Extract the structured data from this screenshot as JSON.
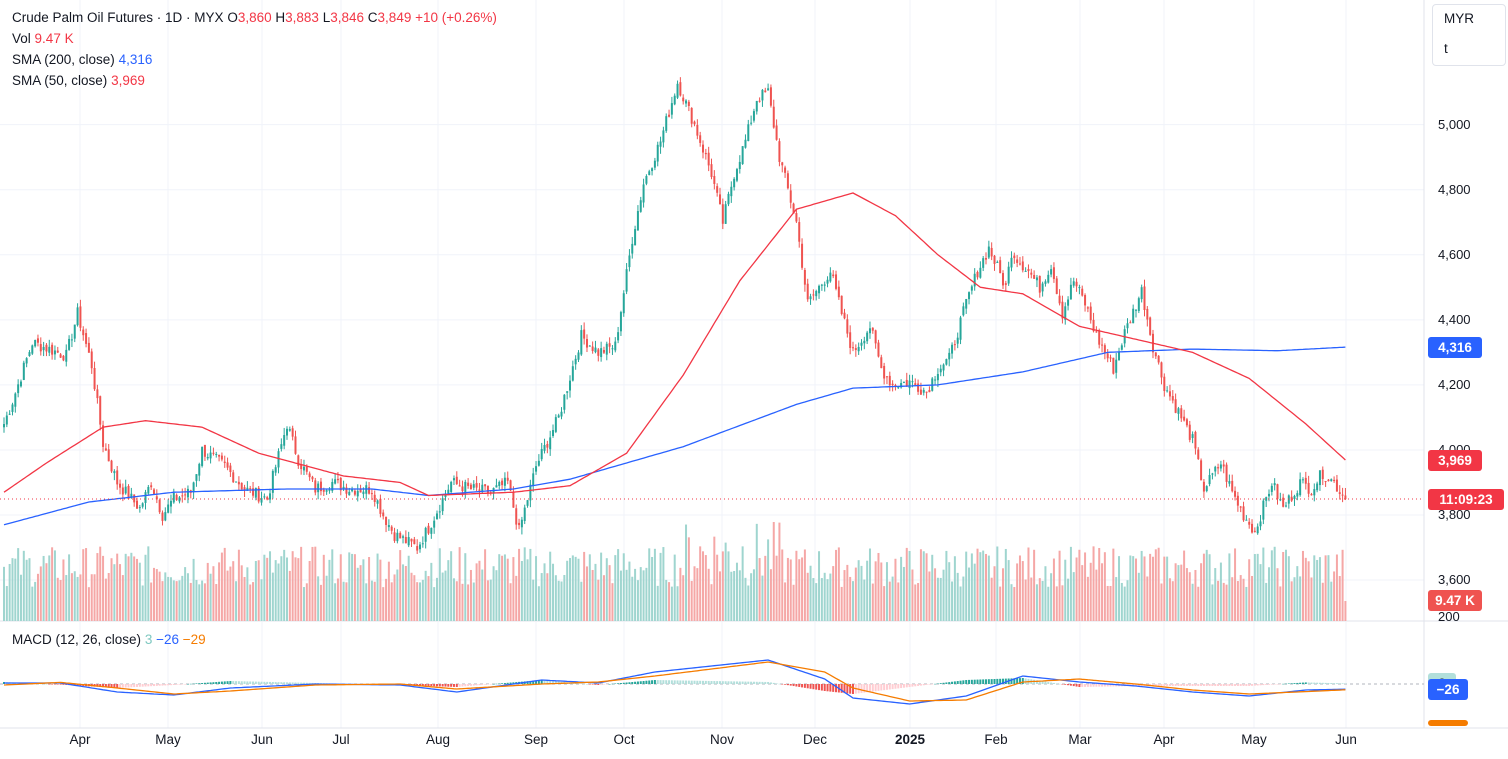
{
  "header": {
    "symbol": "Crude Palm Oil Futures · 1D · MYX",
    "o_label": "O",
    "o": "3,860",
    "h_label": "H",
    "h": "3,883",
    "l_label": "L",
    "l": "3,846",
    "c_label": "C",
    "c": "3,849",
    "change": "+10 (+0.26%)"
  },
  "volume_legend": {
    "label": "Vol",
    "value": "9.47 K"
  },
  "sma200_legend": {
    "label": "SMA (200, close)",
    "value": "4,316"
  },
  "sma50_legend": {
    "label": "SMA (50, close)",
    "value": "3,969"
  },
  "macd_legend": {
    "label": "MACD (12, 26, close)",
    "hist": "3",
    "macd": "−26",
    "signal": "−29"
  },
  "currency": {
    "label": "MYR",
    "sub": "t"
  },
  "tags": {
    "sma200": "4,316",
    "sma50": "3,969",
    "countdown": "11:09:23",
    "volume": "9.47 K",
    "macd_hist": "3",
    "macd": "−26"
  },
  "colors": {
    "up": "#26a69a",
    "down": "#ef5350",
    "sma200": "#2962ff",
    "sma50": "#f23645",
    "signal": "#f57c00",
    "vol_up": "#9fd5cf",
    "vol_down": "#f5a7a6"
  },
  "chart_data": {
    "type": "candlestick",
    "price_axis": {
      "ticks": [
        3600,
        3800,
        4000,
        4200,
        4400,
        4600,
        4800,
        5000
      ],
      "labels": [
        "3,600",
        "3,800",
        "4,000",
        "4,200",
        "4,400",
        "4,600",
        "4,800",
        "5,000"
      ]
    },
    "macd_axis": {
      "ticks": [
        200
      ],
      "labels": [
        "200"
      ]
    },
    "time_axis": [
      "Apr",
      "May",
      "Jun",
      "Jul",
      "Aug",
      "Sep",
      "Oct",
      "Nov",
      "Dec",
      "2025",
      "Feb",
      "Mar",
      "Apr",
      "May",
      "Jun"
    ],
    "price_keypoints": [
      [
        0,
        4080
      ],
      [
        3,
        4150
      ],
      [
        10,
        4330
      ],
      [
        22,
        4290
      ],
      [
        26,
        4420
      ],
      [
        31,
        4260
      ],
      [
        35,
        4020
      ],
      [
        40,
        3900
      ],
      [
        48,
        3820
      ],
      [
        52,
        3900
      ],
      [
        56,
        3800
      ],
      [
        60,
        3850
      ],
      [
        66,
        3870
      ],
      [
        70,
        4000
      ],
      [
        78,
        3950
      ],
      [
        85,
        3880
      ],
      [
        93,
        3850
      ],
      [
        100,
        4080
      ],
      [
        104,
        3970
      ],
      [
        110,
        3880
      ],
      [
        116,
        3900
      ],
      [
        122,
        3880
      ],
      [
        130,
        3880
      ],
      [
        134,
        3800
      ],
      [
        138,
        3740
      ],
      [
        146,
        3700
      ],
      [
        150,
        3760
      ],
      [
        158,
        3900
      ],
      [
        165,
        3880
      ],
      [
        172,
        3870
      ],
      [
        178,
        3900
      ],
      [
        182,
        3750
      ],
      [
        188,
        3950
      ],
      [
        196,
        4100
      ],
      [
        204,
        4350
      ],
      [
        210,
        4300
      ],
      [
        216,
        4320
      ],
      [
        222,
        4650
      ],
      [
        226,
        4820
      ],
      [
        232,
        4950
      ],
      [
        238,
        5130
      ],
      [
        244,
        5000
      ],
      [
        250,
        4850
      ],
      [
        254,
        4700
      ],
      [
        258,
        4850
      ],
      [
        262,
        4950
      ],
      [
        266,
        5080
      ],
      [
        270,
        5100
      ],
      [
        274,
        4900
      ],
      [
        280,
        4700
      ],
      [
        284,
        4450
      ],
      [
        288,
        4500
      ],
      [
        292,
        4550
      ],
      [
        296,
        4420
      ],
      [
        300,
        4300
      ],
      [
        306,
        4380
      ],
      [
        310,
        4250
      ],
      [
        314,
        4200
      ],
      [
        320,
        4210
      ],
      [
        326,
        4180
      ],
      [
        330,
        4250
      ],
      [
        334,
        4280
      ],
      [
        340,
        4450
      ],
      [
        344,
        4550
      ],
      [
        348,
        4620
      ],
      [
        354,
        4500
      ],
      [
        356,
        4610
      ],
      [
        362,
        4550
      ],
      [
        366,
        4500
      ],
      [
        370,
        4570
      ],
      [
        374,
        4420
      ],
      [
        378,
        4520
      ],
      [
        382,
        4450
      ],
      [
        386,
        4350
      ],
      [
        392,
        4250
      ],
      [
        396,
        4360
      ],
      [
        402,
        4490
      ],
      [
        406,
        4320
      ],
      [
        410,
        4200
      ],
      [
        416,
        4100
      ],
      [
        420,
        4030
      ],
      [
        424,
        3880
      ],
      [
        430,
        3960
      ],
      [
        434,
        3870
      ],
      [
        438,
        3800
      ],
      [
        442,
        3750
      ],
      [
        448,
        3900
      ],
      [
        452,
        3820
      ],
      [
        458,
        3900
      ],
      [
        462,
        3880
      ],
      [
        466,
        3930
      ],
      [
        470,
        3900
      ],
      [
        474,
        3849
      ]
    ],
    "sma200_keypoints": [
      [
        0,
        3770
      ],
      [
        30,
        3840
      ],
      [
        60,
        3870
      ],
      [
        100,
        3880
      ],
      [
        130,
        3880
      ],
      [
        150,
        3860
      ],
      [
        180,
        3880
      ],
      [
        200,
        3910
      ],
      [
        240,
        4010
      ],
      [
        280,
        4140
      ],
      [
        300,
        4190
      ],
      [
        330,
        4200
      ],
      [
        360,
        4240
      ],
      [
        390,
        4300
      ],
      [
        420,
        4310
      ],
      [
        450,
        4305
      ],
      [
        474,
        4316
      ]
    ],
    "sma50_keypoints": [
      [
        0,
        3870
      ],
      [
        15,
        3960
      ],
      [
        35,
        4070
      ],
      [
        50,
        4090
      ],
      [
        70,
        4070
      ],
      [
        90,
        3990
      ],
      [
        120,
        3920
      ],
      [
        140,
        3900
      ],
      [
        150,
        3860
      ],
      [
        180,
        3870
      ],
      [
        200,
        3890
      ],
      [
        220,
        3990
      ],
      [
        240,
        4230
      ],
      [
        260,
        4520
      ],
      [
        280,
        4740
      ],
      [
        300,
        4790
      ],
      [
        315,
        4720
      ],
      [
        330,
        4600
      ],
      [
        345,
        4500
      ],
      [
        360,
        4480
      ],
      [
        380,
        4380
      ],
      [
        400,
        4340
      ],
      [
        420,
        4300
      ],
      [
        440,
        4220
      ],
      [
        460,
        4080
      ],
      [
        474,
        3969
      ]
    ],
    "macd_keypoints": [
      [
        0,
        5
      ],
      [
        20,
        5
      ],
      [
        40,
        -40
      ],
      [
        60,
        -55
      ],
      [
        80,
        -20
      ],
      [
        110,
        0
      ],
      [
        140,
        -5
      ],
      [
        160,
        -40
      ],
      [
        190,
        20
      ],
      [
        210,
        5
      ],
      [
        230,
        60
      ],
      [
        250,
        90
      ],
      [
        270,
        120
      ],
      [
        290,
        25
      ],
      [
        300,
        -70
      ],
      [
        320,
        -100
      ],
      [
        340,
        -60
      ],
      [
        360,
        40
      ],
      [
        380,
        10
      ],
      [
        400,
        -10
      ],
      [
        420,
        -40
      ],
      [
        440,
        -60
      ],
      [
        460,
        -30
      ],
      [
        474,
        -26
      ]
    ],
    "signal_keypoints": [
      [
        0,
        -5
      ],
      [
        20,
        8
      ],
      [
        40,
        -20
      ],
      [
        60,
        -50
      ],
      [
        80,
        -35
      ],
      [
        110,
        -5
      ],
      [
        140,
        0
      ],
      [
        160,
        -25
      ],
      [
        190,
        0
      ],
      [
        210,
        10
      ],
      [
        230,
        40
      ],
      [
        250,
        75
      ],
      [
        270,
        110
      ],
      [
        290,
        60
      ],
      [
        300,
        -20
      ],
      [
        320,
        -85
      ],
      [
        340,
        -80
      ],
      [
        360,
        10
      ],
      [
        380,
        25
      ],
      [
        400,
        0
      ],
      [
        420,
        -30
      ],
      [
        440,
        -50
      ],
      [
        460,
        -38
      ],
      [
        474,
        -29
      ]
    ],
    "last_values": {
      "close": 3849,
      "sma200": 4316,
      "sma50": 3969,
      "volume": "9.47 K",
      "macd": -26,
      "signal": -29,
      "hist": 3
    }
  }
}
